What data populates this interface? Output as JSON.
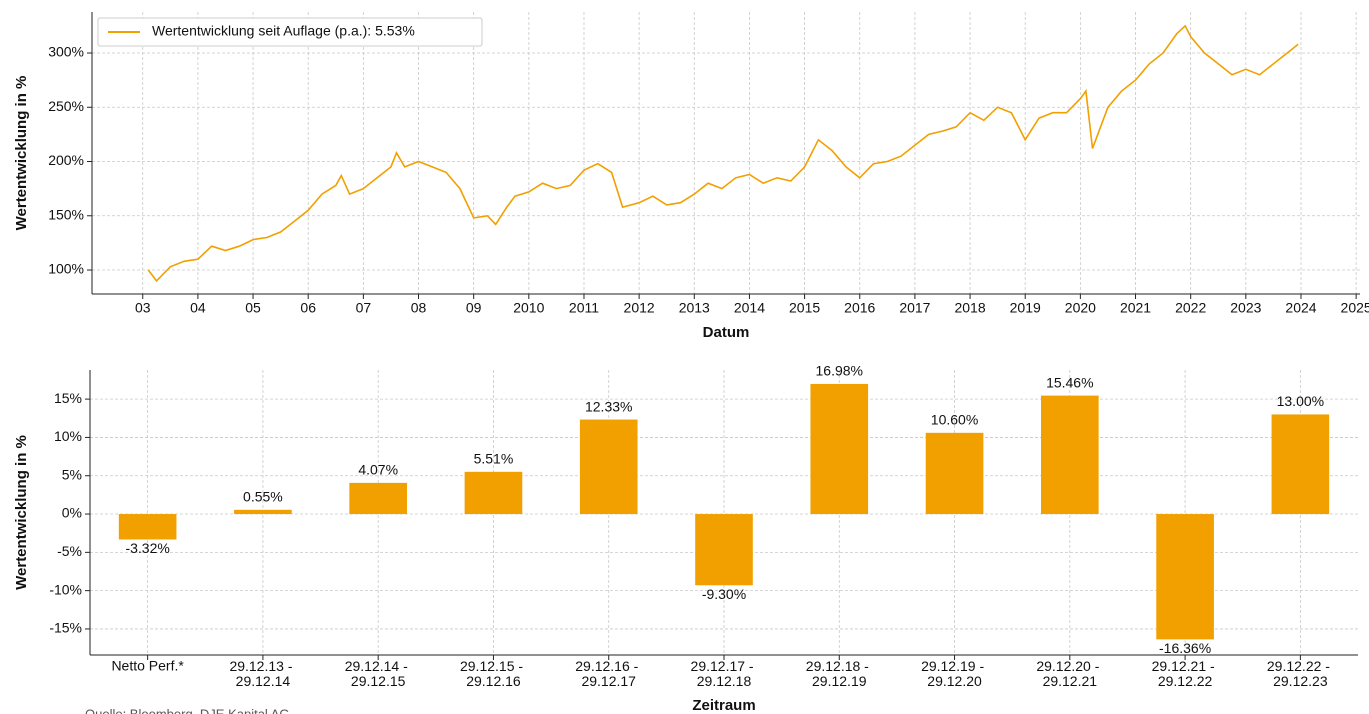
{
  "chart_data": [
    {
      "type": "line",
      "xlabel": "Datum",
      "ylabel": "Wertentwicklung in %",
      "grid": true,
      "legend": "upper left",
      "xlim": [
        2002.08,
        2025.07
      ],
      "ylim": [
        77.9,
        337.8
      ],
      "xticks": [
        {
          "value": 2003,
          "label": "03"
        },
        {
          "value": 2004,
          "label": "04"
        },
        {
          "value": 2005,
          "label": "05"
        },
        {
          "value": 2006,
          "label": "06"
        },
        {
          "value": 2007,
          "label": "07"
        },
        {
          "value": 2008,
          "label": "08"
        },
        {
          "value": 2009,
          "label": "09"
        },
        2010,
        2011,
        2012,
        2013,
        2014,
        2015,
        2016,
        2017,
        2018,
        2019,
        2020,
        2021,
        2022,
        2023,
        2024,
        2025
      ],
      "yticks": [
        {
          "value": 100,
          "label": "100%"
        },
        {
          "value": 150,
          "label": "150%"
        },
        {
          "value": 200,
          "label": "200%"
        },
        {
          "value": 250,
          "label": "250%"
        },
        {
          "value": 300,
          "label": "300%"
        }
      ],
      "x": [
        2003.1,
        2003.25,
        2003.5,
        2003.75,
        2004.0,
        2004.25,
        2004.5,
        2004.75,
        2005.0,
        2005.25,
        2005.5,
        2005.75,
        2006.0,
        2006.25,
        2006.5,
        2006.6,
        2006.75,
        2007.0,
        2007.25,
        2007.5,
        2007.6,
        2007.75,
        2008.0,
        2008.25,
        2008.5,
        2008.75,
        2009.0,
        2009.25,
        2009.4,
        2009.6,
        2009.75,
        2010.0,
        2010.25,
        2010.5,
        2010.75,
        2011.0,
        2011.25,
        2011.5,
        2011.7,
        2012.0,
        2012.25,
        2012.5,
        2012.75,
        2013.0,
        2013.25,
        2013.5,
        2013.75,
        2014.0,
        2014.25,
        2014.5,
        2014.75,
        2015.0,
        2015.25,
        2015.5,
        2015.75,
        2016.0,
        2016.25,
        2016.5,
        2016.75,
        2017.0,
        2017.25,
        2017.5,
        2017.75,
        2018.0,
        2018.25,
        2018.5,
        2018.75,
        2019.0,
        2019.25,
        2019.5,
        2019.75,
        2020.0,
        2020.1,
        2020.22,
        2020.5,
        2020.75,
        2021.0,
        2021.25,
        2021.5,
        2021.75,
        2021.9,
        2022.0,
        2022.25,
        2022.5,
        2022.75,
        2023.0,
        2023.25,
        2023.5,
        2023.75,
        2023.95
      ],
      "series": [
        {
          "name": "Wertentwicklung seit Auflage (p.a.): 5.53%",
          "color": "#f2a000",
          "values": [
            100,
            90,
            103,
            108,
            110,
            122,
            118,
            122,
            128,
            130,
            135,
            145,
            155,
            170,
            178,
            187,
            170,
            175,
            185,
            195,
            208,
            195,
            200,
            195,
            190,
            175,
            148,
            150,
            142,
            158,
            168,
            172,
            180,
            175,
            178,
            192,
            198,
            190,
            158,
            162,
            168,
            160,
            162,
            170,
            180,
            175,
            185,
            188,
            180,
            185,
            182,
            195,
            220,
            210,
            195,
            185,
            198,
            200,
            205,
            215,
            225,
            228,
            232,
            245,
            238,
            250,
            245,
            220,
            240,
            245,
            245,
            258,
            265,
            212,
            250,
            265,
            275,
            290,
            300,
            318,
            325,
            315,
            300,
            290,
            280,
            285,
            280,
            290,
            300,
            308
          ]
        }
      ]
    },
    {
      "type": "bar",
      "xlabel": "Zeitraum",
      "ylabel": "Wertentwicklung in %",
      "grid": true,
      "color": "#f2a000",
      "source": "Quelle: Bloomberg, DJE Kapital AG",
      "ylim": [
        -18.4,
        18.8
      ],
      "yticks": [
        {
          "value": -15,
          "label": "-15%"
        },
        {
          "value": -10,
          "label": "-10%"
        },
        {
          "value": -5,
          "label": "-5%"
        },
        {
          "value": 0,
          "label": "0%"
        },
        {
          "value": 5,
          "label": "5%"
        },
        {
          "value": 10,
          "label": "10%"
        },
        {
          "value": 15,
          "label": "15%"
        }
      ],
      "categories": [
        "Netto Perf.*",
        "29.12.13 - 29.12.14",
        "29.12.14 - 29.12.15",
        "29.12.15 - 29.12.16",
        "29.12.16 - 29.12.17",
        "29.12.17 - 29.12.18",
        "29.12.18 - 29.12.19",
        "29.12.19 - 29.12.20",
        "29.12.20 - 29.12.21",
        "29.12.21 - 29.12.22",
        "29.12.22 - 29.12.23"
      ],
      "values": [
        -3.32,
        0.55,
        4.07,
        5.51,
        12.33,
        -9.3,
        16.98,
        10.6,
        15.46,
        -16.36,
        13.0
      ],
      "value_labels": [
        "-3.32%",
        "0.55%",
        "4.07%",
        "5.51%",
        "12.33%",
        "-9.30%",
        "16.98%",
        "10.60%",
        "15.46%",
        "-16.36%",
        "13.00%"
      ]
    }
  ]
}
